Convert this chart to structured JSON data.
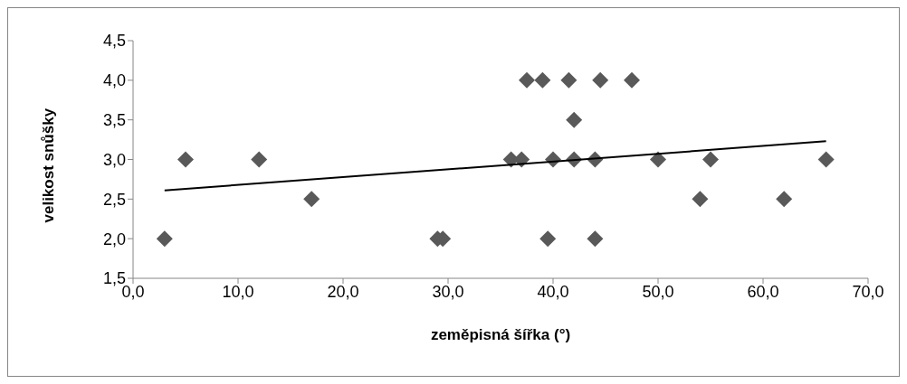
{
  "chart_data": {
    "type": "scatter",
    "xlabel": "zeměpisná šířka (°)",
    "ylabel": "velikost snůšky",
    "xlim": [
      0,
      70
    ],
    "xticks": [
      {
        "value": 0,
        "label": "0,0"
      },
      {
        "value": 10,
        "label": "10,0"
      },
      {
        "value": 20,
        "label": "20,0"
      },
      {
        "value": 30,
        "label": "30,0"
      },
      {
        "value": 40,
        "label": "40,0"
      },
      {
        "value": 50,
        "label": "50,0"
      },
      {
        "value": 60,
        "label": "60,0"
      },
      {
        "value": 70,
        "label": "70,0"
      }
    ],
    "ylim": [
      1.5,
      4.5
    ],
    "yticks": [
      {
        "value": 1.5,
        "label": "1,5"
      },
      {
        "value": 2,
        "label": "2,0"
      },
      {
        "value": 2.5,
        "label": "2,5"
      },
      {
        "value": 3,
        "label": "3,0"
      },
      {
        "value": 3.5,
        "label": "3,5"
      },
      {
        "value": 4,
        "label": "4,0"
      },
      {
        "value": 4.5,
        "label": "4,5"
      }
    ],
    "grid": false,
    "legend": false,
    "series": [
      {
        "color": "#595959",
        "marker": "diamond",
        "x": [
          3,
          5,
          12,
          17,
          29,
          29.5,
          36,
          37,
          40,
          42,
          44,
          50,
          55,
          66,
          54,
          62,
          37.5,
          39,
          41.5,
          44.5,
          47.5,
          42,
          39.5,
          44
        ],
        "values": [
          2,
          3,
          3,
          2.5,
          2,
          2,
          3,
          3,
          3,
          3,
          3,
          3,
          3,
          3,
          2.5,
          2.5,
          4,
          4,
          4,
          4,
          4,
          3.5,
          2,
          2
        ]
      },
      {
        "type": "line",
        "color": "#000000",
        "marker": "none",
        "x": [
          3,
          66
        ],
        "values": [
          2.61,
          3.23
        ]
      }
    ]
  }
}
